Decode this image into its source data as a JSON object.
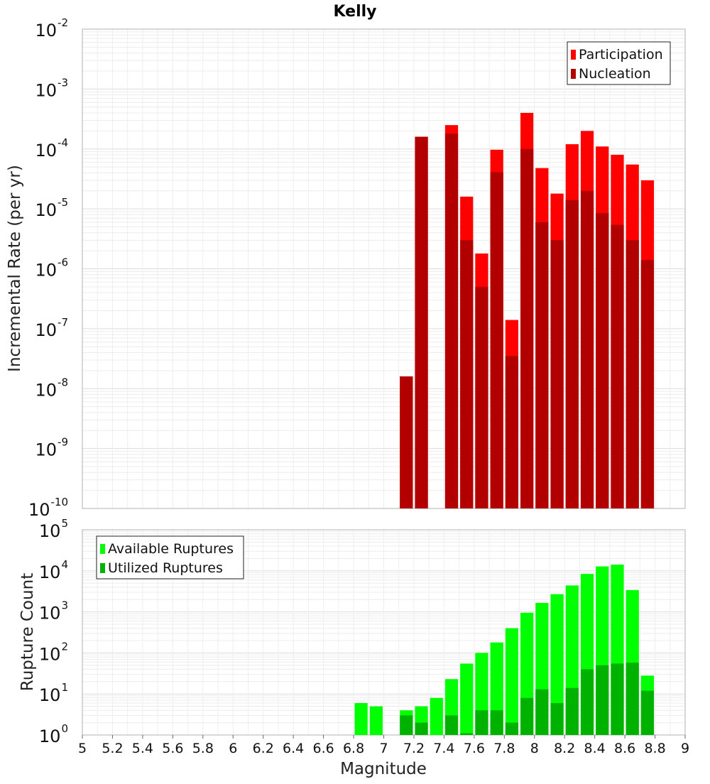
{
  "chart_data": [
    {
      "type": "bar",
      "title": "Kelly",
      "ylabel": "Incremental Rate (per yr)",
      "y_scale": "log",
      "ylim": [
        1e-10,
        0.01
      ],
      "xlim": [
        5,
        9
      ],
      "bin_width": 0.1,
      "x": [
        7.15,
        7.25,
        7.45,
        7.55,
        7.65,
        7.75,
        7.85,
        7.95,
        8.05,
        8.15,
        8.25,
        8.35,
        8.45,
        8.55,
        8.65,
        8.75
      ],
      "series": [
        {
          "name": "Participation",
          "color": "#ff0000",
          "values": [
            1.6e-08,
            0.00016,
            0.00025,
            1.6e-05,
            1.8e-06,
            9.7e-05,
            1.4e-07,
            0.0004,
            4.8e-05,
            1.8e-05,
            0.00012,
            0.0002,
            0.00011,
            8e-05,
            5.5e-05,
            3e-05
          ]
        },
        {
          "name": "Nucleation",
          "color": "#b20000",
          "values": [
            1.6e-08,
            0.00016,
            0.00018,
            3e-06,
            5e-07,
            4.1e-05,
            3.5e-08,
            0.0001,
            6e-06,
            3e-06,
            1.4e-05,
            2e-05,
            8.5e-06,
            5.4e-06,
            3e-06,
            1.4e-06
          ]
        }
      ],
      "legend_position": "top-right",
      "grid": true
    },
    {
      "type": "bar",
      "xlabel": "Magnitude",
      "ylabel": "Rupture Count",
      "y_scale": "log",
      "ylim": [
        1,
        100000
      ],
      "xlim": [
        5,
        9
      ],
      "bin_width": 0.1,
      "x": [
        6.85,
        6.95,
        7.15,
        7.25,
        7.35,
        7.45,
        7.55,
        7.65,
        7.75,
        7.85,
        7.95,
        8.05,
        8.15,
        8.25,
        8.35,
        8.45,
        8.55,
        8.65,
        8.75
      ],
      "series": [
        {
          "name": "Available Ruptures",
          "color": "#00ff00",
          "values": [
            6,
            5,
            4,
            5,
            8,
            23,
            55,
            100,
            180,
            400,
            950,
            1650,
            2700,
            4400,
            8400,
            12800,
            14200,
            3400,
            28
          ]
        },
        {
          "name": "Utilized Ruptures",
          "color": "#00b200",
          "values": [
            null,
            null,
            3,
            2,
            null,
            3,
            1.1,
            4,
            4,
            2,
            8,
            13,
            6,
            14,
            40,
            50,
            55,
            58,
            12
          ]
        }
      ],
      "x_ticks": [
        "5",
        "5.2",
        "5.4",
        "5.6",
        "5.8",
        "6",
        "6.2",
        "6.4",
        "6.6",
        "6.8",
        "7",
        "7.2",
        "7.4",
        "7.6",
        "7.8",
        "8",
        "8.2",
        "8.4",
        "8.6",
        "8.8",
        "9"
      ],
      "legend_position": "top-left",
      "grid": true
    }
  ]
}
